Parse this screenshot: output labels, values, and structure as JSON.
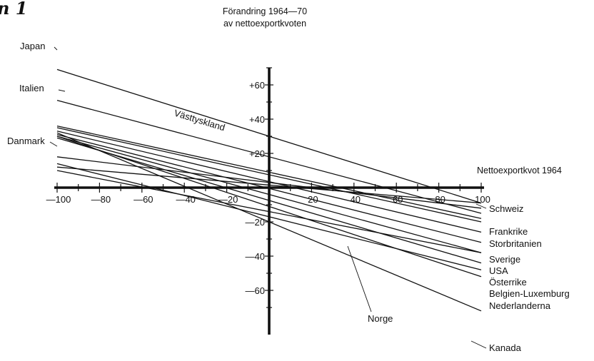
{
  "figure_label": "n 1",
  "chart_data": {
    "type": "line",
    "y_axis_title_line1": "Förandring 1964—70",
    "y_axis_title_line2": "av nettoexportkvoten",
    "x_axis_title": "Nettoexportkvot 1964",
    "x_range": [
      -100,
      100
    ],
    "y_range": [
      -80,
      70
    ],
    "x_ticks": [
      {
        "value": -100,
        "label": "—100"
      },
      {
        "value": -80,
        "label": "—80"
      },
      {
        "value": -60,
        "label": "—60"
      },
      {
        "value": -40,
        "label": "—40"
      },
      {
        "value": -20,
        "label": "—20"
      },
      {
        "value": 20,
        "label": "20"
      },
      {
        "value": 40,
        "label": "40"
      },
      {
        "value": 60,
        "label": "60"
      },
      {
        "value": 80,
        "label": "80"
      },
      {
        "value": 100,
        "label": "100"
      }
    ],
    "y_ticks": [
      {
        "value": 60,
        "label": "+60"
      },
      {
        "value": 40,
        "label": "+40"
      },
      {
        "value": 20,
        "label": "+20"
      },
      {
        "value": -20,
        "label": "—20"
      },
      {
        "value": -40,
        "label": "—40"
      },
      {
        "value": -60,
        "label": "—60"
      }
    ],
    "grid": false,
    "legend": "none",
    "series": [
      {
        "name": "Japan",
        "x": [
          -100,
          100
        ],
        "y": [
          69,
          -9
        ]
      },
      {
        "name": "Italien",
        "x": [
          -100,
          100
        ],
        "y": [
          51,
          -15
        ]
      },
      {
        "name": "Västtyskland",
        "x": [
          -100,
          100
        ],
        "y": [
          36,
          -18
        ]
      },
      {
        "name": "Danmark",
        "x": [
          -100,
          100
        ],
        "y": [
          18,
          -12
        ]
      },
      {
        "name": "Schweiz",
        "x": [
          -100,
          100
        ],
        "y": [
          12,
          -9
        ]
      },
      {
        "name": "Frankrike",
        "x": [
          -100,
          100
        ],
        "y": [
          35,
          -20
        ]
      },
      {
        "name": "Storbritanien",
        "x": [
          -100,
          100
        ],
        "y": [
          33,
          -26
        ]
      },
      {
        "name": "Sverige",
        "x": [
          -100,
          100
        ],
        "y": [
          31,
          -32
        ]
      },
      {
        "name": "USA",
        "x": [
          -100,
          100
        ],
        "y": [
          30,
          -38
        ]
      },
      {
        "name": "Österrike",
        "x": [
          -100,
          100
        ],
        "y": [
          29,
          -44
        ]
      },
      {
        "name": "Belgien-Luxemburg",
        "x": [
          -100,
          100
        ],
        "y": [
          14,
          -48
        ]
      },
      {
        "name": "Nederlanderna",
        "x": [
          -100,
          100
        ],
        "y": [
          30,
          -52
        ]
      },
      {
        "name": "Norge",
        "x": [
          -100,
          100
        ],
        "y": [
          10,
          -38
        ]
      },
      {
        "name": "Kanada",
        "x": [
          -100,
          100
        ],
        "y": [
          32,
          -72
        ]
      }
    ]
  }
}
